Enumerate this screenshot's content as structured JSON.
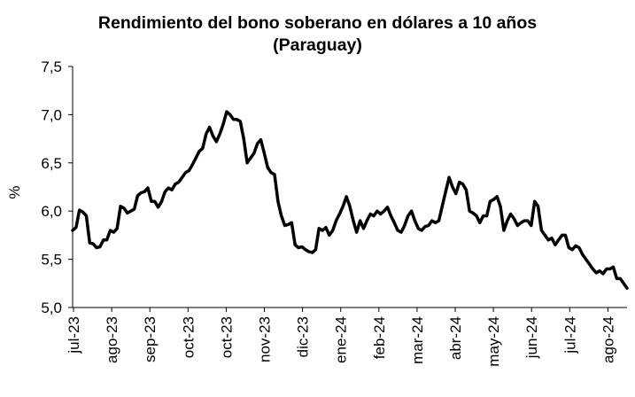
{
  "chart_data": {
    "type": "line",
    "title_line1": "Rendimiento del bono soberano en dólares a 10 años",
    "title_line2": "(Paraguay)",
    "ylabel": "%",
    "xlabel": "",
    "ylim": [
      5.0,
      7.5
    ],
    "yticks": [
      "5,0",
      "5,5",
      "6,0",
      "6,5",
      "7,0",
      "7,5"
    ],
    "ytick_values": [
      5.0,
      5.5,
      6.0,
      6.5,
      7.0,
      7.5
    ],
    "grid": false,
    "legend": "none",
    "line_color": "#000000",
    "x_tick_labels": [
      "jul-23",
      "ago-23",
      "sep-23",
      "oct-23",
      "oct-23",
      "nov-23",
      "dic-23",
      "ene-24",
      "feb-24",
      "mar-24",
      "abr-24",
      "may-24",
      "jun-24",
      "jul-24",
      "ago-24"
    ],
    "series": [
      {
        "values": [
          5.8,
          5.83,
          6.01,
          5.99,
          5.95,
          5.67,
          5.66,
          5.62,
          5.63,
          5.7,
          5.7,
          5.8,
          5.78,
          5.82,
          6.05,
          6.03,
          5.98,
          6.0,
          6.02,
          6.16,
          6.19,
          6.2,
          6.24,
          6.1,
          6.1,
          6.04,
          6.1,
          6.2,
          6.24,
          6.22,
          6.28,
          6.3,
          6.35,
          6.4,
          6.42,
          6.48,
          6.55,
          6.62,
          6.65,
          6.8,
          6.87,
          6.78,
          6.72,
          6.8,
          6.9,
          7.03,
          7.0,
          6.95,
          6.95,
          6.93,
          6.75,
          6.5,
          6.55,
          6.6,
          6.7,
          6.74,
          6.6,
          6.45,
          6.4,
          6.38,
          6.1,
          5.95,
          5.85,
          5.86,
          5.88,
          5.65,
          5.62,
          5.63,
          5.6,
          5.58,
          5.57,
          5.6,
          5.82,
          5.8,
          5.83,
          5.75,
          5.8,
          5.9,
          5.97,
          6.05,
          6.15,
          6.05,
          5.9,
          5.78,
          5.9,
          5.82,
          5.9,
          5.97,
          5.95,
          6.0,
          5.97,
          6.0,
          6.04,
          5.95,
          5.88,
          5.8,
          5.78,
          5.85,
          5.95,
          6.0,
          5.9,
          5.82,
          5.8,
          5.84,
          5.85,
          5.9,
          5.88,
          5.9,
          6.05,
          6.2,
          6.35,
          6.25,
          6.18,
          6.3,
          6.28,
          6.22,
          6.0,
          5.98,
          5.95,
          5.88,
          5.95,
          5.95,
          6.1,
          6.12,
          6.15,
          6.05,
          5.8,
          5.9,
          5.97,
          5.92,
          5.85,
          5.88,
          5.9,
          5.9,
          5.85,
          6.1,
          6.05,
          5.8,
          5.75,
          5.7,
          5.72,
          5.65,
          5.7,
          5.75,
          5.75,
          5.62,
          5.6,
          5.64,
          5.62,
          5.55,
          5.5,
          5.45,
          5.4,
          5.36,
          5.38,
          5.35,
          5.4,
          5.4,
          5.42,
          5.3,
          5.3,
          5.25,
          5.2
        ]
      }
    ]
  }
}
